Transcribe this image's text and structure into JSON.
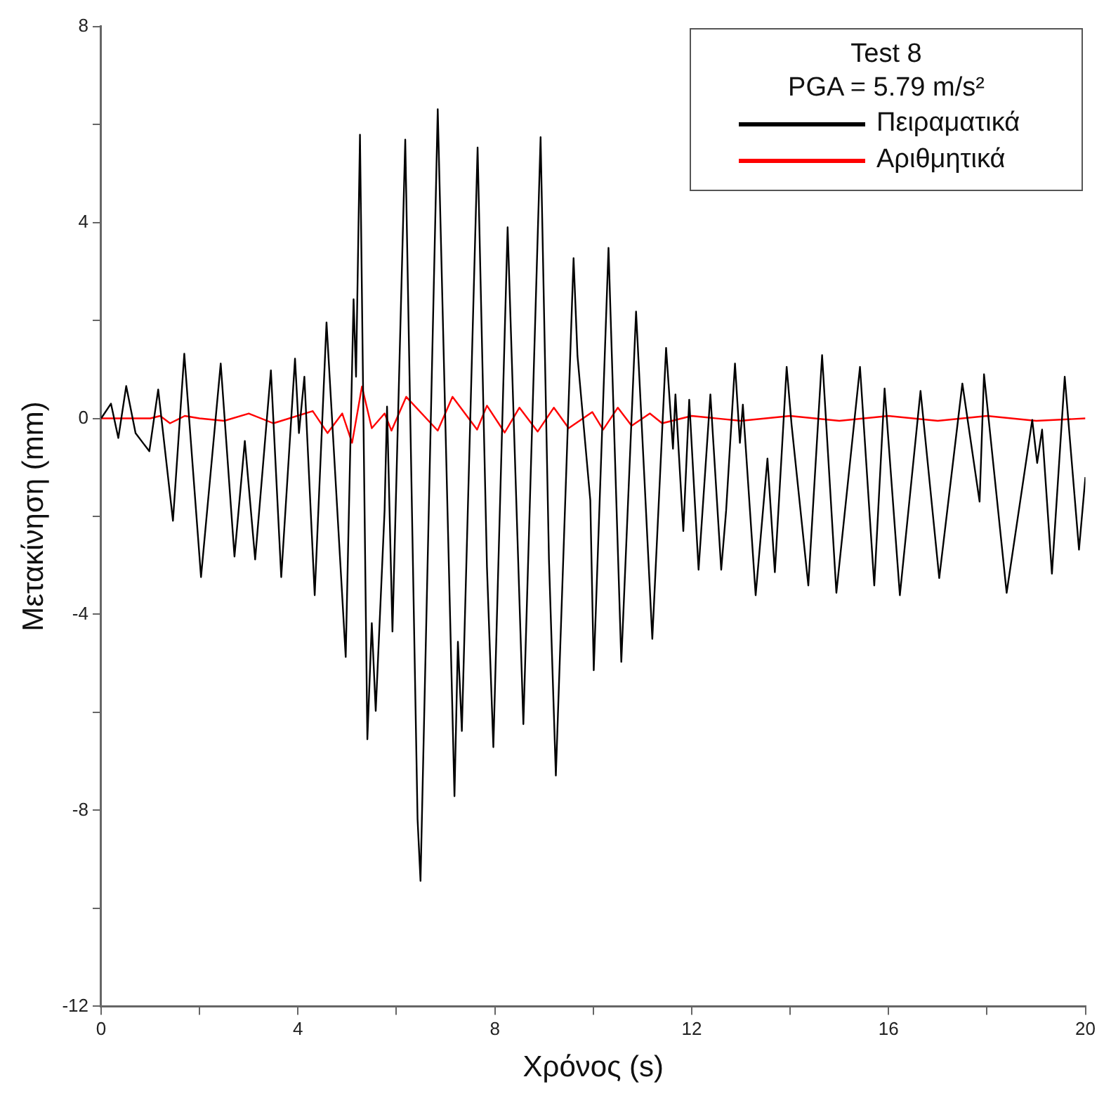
{
  "chart_data": {
    "type": "line",
    "xlabel": "Χρόνος (s)",
    "ylabel": "Μετακίνηση (mm)",
    "legend_title": "Test 8\nPGA = 5.79 m/s²",
    "legend": "top right",
    "grid": false,
    "marker": "none",
    "line_style": "solid",
    "xlim": [
      0,
      20
    ],
    "ylim": [
      -12,
      8
    ],
    "xticks": [
      0,
      {
        "value": 2,
        "label": null
      },
      4,
      {
        "value": 6,
        "label": null
      },
      8,
      {
        "value": 10,
        "label": null
      },
      12,
      {
        "value": 14,
        "label": null
      },
      16,
      {
        "value": 18,
        "label": null
      },
      20
    ],
    "yticks": [
      -12,
      {
        "value": -10,
        "label": null
      },
      -8,
      {
        "value": -6,
        "label": null
      },
      -4,
      {
        "value": -2,
        "label": null
      },
      0,
      {
        "value": 2,
        "label": null
      },
      4,
      {
        "value": 6,
        "label": null
      },
      8
    ],
    "series": [
      {
        "name": "Πειραματικά",
        "color": "#000000",
        "x": [
          0,
          0.2,
          0.35,
          0.51,
          0.7,
          0.85,
          0.98,
          1.16,
          1.46,
          1.69,
          2.03,
          2.43,
          2.71,
          2.92,
          3.13,
          3.45,
          3.66,
          3.94,
          4.02,
          4.13,
          4.34,
          4.58,
          4.97,
          5.13,
          5.18,
          5.26,
          5.41,
          5.5,
          5.58,
          5.76,
          5.81,
          5.92,
          6.18,
          6.43,
          6.49,
          6.84,
          7.18,
          7.25,
          7.33,
          7.65,
          7.84,
          7.97,
          8.26,
          8.58,
          8.93,
          9.1,
          9.24,
          9.6,
          9.68,
          9.94,
          10.01,
          10.31,
          10.57,
          10.87,
          11.04,
          11.2,
          11.48,
          11.62,
          11.67,
          11.83,
          11.95,
          12.14,
          12.38,
          12.6,
          12.7,
          12.88,
          12.98,
          13.04,
          13.3,
          13.54,
          13.69,
          13.93,
          14.03,
          14.37,
          14.65,
          14.94,
          15.42,
          15.71,
          15.92,
          16.23,
          16.65,
          17.03,
          17.5,
          17.85,
          17.94,
          18.4,
          18.92,
          19.02,
          19.12,
          19.32,
          19.58,
          19.87,
          20
        ],
        "values": [
          0,
          0.3,
          -0.4,
          0.66,
          -0.3,
          -0.5,
          -0.67,
          0.59,
          -2.09,
          1.32,
          -3.24,
          1.12,
          -2.82,
          -0.46,
          -2.88,
          0.98,
          -3.24,
          1.22,
          -0.3,
          0.85,
          -3.61,
          1.96,
          -4.87,
          2.43,
          0.85,
          5.79,
          -6.55,
          -4.18,
          -5.97,
          -1.88,
          0.24,
          -4.35,
          5.69,
          -8.18,
          -9.44,
          6.31,
          -7.71,
          -4.56,
          -6.38,
          5.53,
          -3.03,
          -6.71,
          3.9,
          -6.24,
          5.74,
          -2.88,
          -7.29,
          3.27,
          1.27,
          -1.67,
          -5.14,
          3.48,
          -4.97,
          2.18,
          -1.24,
          -4.5,
          1.44,
          -0.62,
          0.49,
          -2.3,
          0.38,
          -3.09,
          0.49,
          -3.09,
          -1.88,
          1.12,
          -0.5,
          0.28,
          -3.61,
          -0.82,
          -3.14,
          1.05,
          -0.13,
          -3.41,
          1.29,
          -3.56,
          1.05,
          -3.41,
          0.61,
          -3.61,
          0.56,
          -3.26,
          0.71,
          -1.7,
          0.9,
          -3.56,
          -0.03,
          -0.91,
          -0.23,
          -3.17,
          0.85,
          -2.68,
          -1.2
        ]
      },
      {
        "name": "Αριθμητικά",
        "color": "#ff0000",
        "x": [
          0,
          1,
          1.2,
          1.4,
          1.7,
          2,
          2.5,
          3,
          3.5,
          4.3,
          4.6,
          4.9,
          5.1,
          5.3,
          5.5,
          5.76,
          5.9,
          6.2,
          6.84,
          7.14,
          7.64,
          7.84,
          8.2,
          8.5,
          8.87,
          9.2,
          9.5,
          9.98,
          10.2,
          10.5,
          10.78,
          11.15,
          11.4,
          12,
          13,
          14,
          15,
          16,
          17,
          18,
          19,
          20
        ],
        "values": [
          0,
          0,
          0.05,
          -0.1,
          0.05,
          0,
          -0.05,
          0.1,
          -0.1,
          0.15,
          -0.3,
          0.1,
          -0.5,
          0.65,
          -0.2,
          0.1,
          -0.25,
          0.44,
          -0.25,
          0.44,
          -0.23,
          0.26,
          -0.29,
          0.22,
          -0.27,
          0.22,
          -0.2,
          0.13,
          -0.23,
          0.22,
          -0.15,
          0.1,
          -0.1,
          0.05,
          -0.05,
          0.05,
          -0.05,
          0.05,
          -0.05,
          0.05,
          -0.05,
          0
        ]
      }
    ]
  }
}
